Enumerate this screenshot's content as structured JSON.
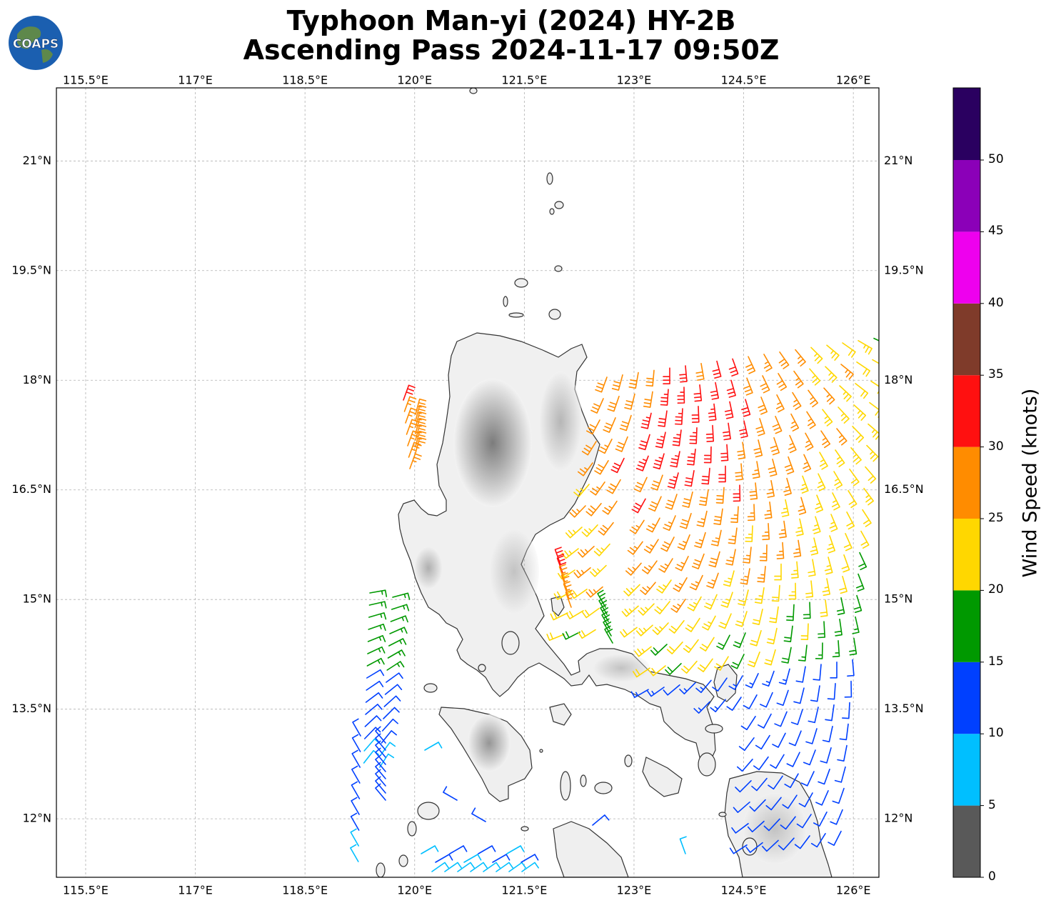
{
  "title_line1": "Typhoon Man-yi (2024) HY-2B",
  "title_line2": "Ascending Pass 2024-11-17 09:50Z",
  "logo": {
    "text": "COAPS",
    "icon": "globe-icon"
  },
  "lon_ticks": [
    "115.5°E",
    "117°E",
    "118.5°E",
    "120°E",
    "121.5°E",
    "123°E",
    "124.5°E",
    "126°E"
  ],
  "lat_ticks": [
    "21°N",
    "19.5°N",
    "18°N",
    "16.5°N",
    "15°N",
    "13.5°N",
    "12°N"
  ],
  "colorbar": {
    "label": "Wind Speed (knots)",
    "ticks": [
      "0",
      "5",
      "10",
      "15",
      "20",
      "25",
      "30",
      "35",
      "40",
      "45",
      "50"
    ],
    "colors": [
      "#595959",
      "#00bfff",
      "#0040ff",
      "#009900",
      "#ffd700",
      "#ff8c00",
      "#ff1010",
      "#7f3b2a",
      "#ee00ee",
      "#8b00b8",
      "#2a0060"
    ]
  },
  "chart_data": {
    "type": "scatter",
    "title": "Typhoon Man-yi (2024) HY-2B\nAscending Pass 2024-11-17 09:50Z",
    "xlim": [
      115.1,
      126.35
    ],
    "ylim": [
      11.2,
      22.0
    ],
    "grid": true,
    "colorbar_label": "Wind Speed (knots)",
    "wind_barb_regions": [
      {
        "region": "west of Luzon (north)",
        "speed_range_kt": [
          25,
          35
        ]
      },
      {
        "region": "west of Luzon (south)",
        "speed_range_kt": [
          10,
          25
        ]
      },
      {
        "region": "east of Luzon",
        "speed_range_kt": [
          10,
          35
        ]
      }
    ]
  }
}
